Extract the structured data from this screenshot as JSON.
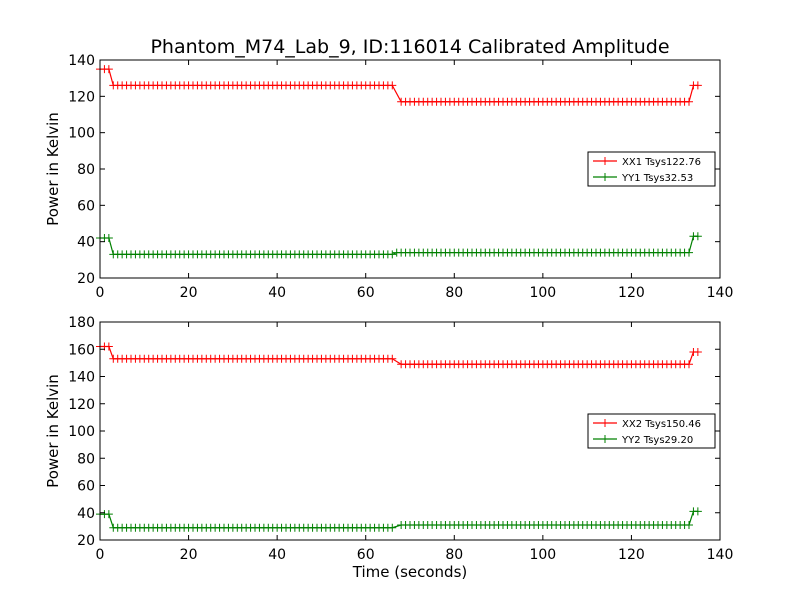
{
  "chart_data": [
    {
      "type": "line",
      "title": "Phantom_M74_Lab_9, ID:116014 Calibrated Amplitude",
      "xlabel": "",
      "ylabel": "Power in Kelvin",
      "xlim": [
        0,
        140
      ],
      "ylim": [
        20,
        140
      ],
      "xticks": [
        "0",
        "20",
        "40",
        "60",
        "80",
        "100",
        "120",
        "140"
      ],
      "yticks": [
        "20",
        "40",
        "60",
        "80",
        "100",
        "120",
        "140"
      ],
      "grid": false,
      "legend_position": "center-right",
      "series": [
        {
          "name": "XX1 Tsys122.76",
          "color": "#ff0000",
          "marker": "plus",
          "segments": [
            {
              "x_start": 0,
              "x_end": 2,
              "y": 135
            },
            {
              "x_start": 3,
              "x_end": 66,
              "y": 126
            },
            {
              "x_start": 68,
              "x_end": 133,
              "y": 117
            },
            {
              "x_start": 134,
              "x_end": 135,
              "y": 126
            }
          ]
        },
        {
          "name": "YY1 Tsys32.53",
          "color": "#008000",
          "marker": "plus",
          "segments": [
            {
              "x_start": 0,
              "x_end": 2,
              "y": 42
            },
            {
              "x_start": 3,
              "x_end": 66,
              "y": 33
            },
            {
              "x_start": 67,
              "x_end": 133,
              "y": 34
            },
            {
              "x_start": 134,
              "x_end": 135,
              "y": 43
            }
          ]
        }
      ]
    },
    {
      "type": "line",
      "title": "",
      "xlabel": "Time (seconds)",
      "ylabel": "Power in Kelvin",
      "xlim": [
        0,
        140
      ],
      "ylim": [
        20,
        180
      ],
      "xticks": [
        "0",
        "20",
        "40",
        "60",
        "80",
        "100",
        "120",
        "140"
      ],
      "yticks": [
        "20",
        "40",
        "60",
        "80",
        "100",
        "120",
        "140",
        "160",
        "180"
      ],
      "grid": false,
      "legend_position": "center-right",
      "series": [
        {
          "name": "XX2 Tsys150.46",
          "color": "#ff0000",
          "marker": "plus",
          "segments": [
            {
              "x_start": 0,
              "x_end": 2,
              "y": 162
            },
            {
              "x_start": 3,
              "x_end": 66,
              "y": 153
            },
            {
              "x_start": 68,
              "x_end": 133,
              "y": 149
            },
            {
              "x_start": 134,
              "x_end": 135,
              "y": 158
            }
          ]
        },
        {
          "name": "YY2 Tsys29.20",
          "color": "#008000",
          "marker": "plus",
          "segments": [
            {
              "x_start": 0,
              "x_end": 2,
              "y": 39
            },
            {
              "x_start": 3,
              "x_end": 66,
              "y": 29
            },
            {
              "x_start": 68,
              "x_end": 133,
              "y": 31
            },
            {
              "x_start": 134,
              "x_end": 135,
              "y": 41
            }
          ]
        }
      ]
    }
  ]
}
